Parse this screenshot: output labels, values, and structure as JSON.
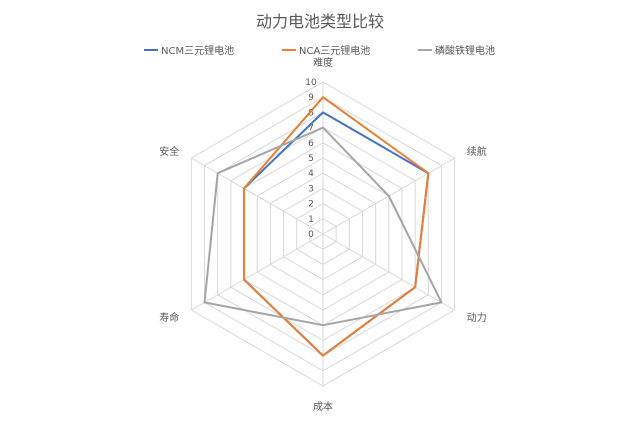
{
  "chart_data": {
    "type": "radar",
    "title": "动力电池类型比较",
    "axes": [
      "难度",
      "续航",
      "动力",
      "成本",
      "寿命",
      "安全"
    ],
    "ticks": [
      "0",
      "1",
      "2",
      "3",
      "4",
      "5",
      "6",
      "7",
      "8",
      "9",
      "10"
    ],
    "range": [
      0,
      10
    ],
    "grid": true,
    "legend_position": "top",
    "series": [
      {
        "name": "NCM三元锂电池",
        "color": "#4472C4",
        "values": [
          8,
          8,
          7,
          8,
          6,
          6
        ]
      },
      {
        "name": "NCA三元锂电池",
        "color": "#ED7D31",
        "values": [
          9,
          8,
          7,
          8,
          6,
          6
        ]
      },
      {
        "name": "磷酸铁锂电池",
        "color": "#A5A5A5",
        "values": [
          7,
          5,
          9,
          6,
          9,
          8
        ]
      }
    ]
  }
}
